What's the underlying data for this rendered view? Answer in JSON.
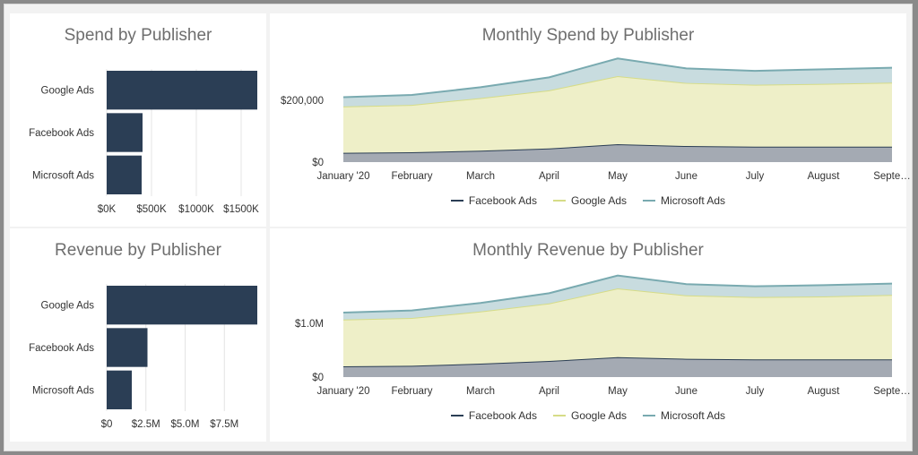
{
  "chart_data": [
    {
      "id": "spend_bar",
      "type": "bar",
      "orientation": "horizontal",
      "title": "Spend by Publisher",
      "categories": [
        "Google Ads",
        "Facebook Ads",
        "Microsoft Ads"
      ],
      "values": [
        1680000,
        400000,
        390000
      ],
      "xlim": [
        0,
        1680000
      ],
      "ticks": [
        0,
        500000,
        1000000,
        1500000
      ],
      "tick_labels": [
        "$0K",
        "$500K",
        "$1000K",
        "$1500K"
      ],
      "color": "#2b3e55",
      "grid": true
    },
    {
      "id": "spend_area",
      "type": "area",
      "stacked": true,
      "title": "Monthly Spend by Publisher",
      "x": [
        "January '20",
        "February",
        "March",
        "April",
        "May",
        "June",
        "July",
        "August",
        "Septe…"
      ],
      "series": [
        {
          "name": "Facebook Ads",
          "values": [
            30000,
            32000,
            37000,
            44000,
            58000,
            52000,
            50000,
            50000,
            50000
          ],
          "line_color": "#2b3e55",
          "fill": "#a4aab3"
        },
        {
          "name": "Google Ads",
          "values": [
            150000,
            153000,
            170000,
            188000,
            220000,
            204000,
            200000,
            203000,
            207000
          ],
          "line_color": "#d6dc87",
          "fill": "#eeefc8"
        },
        {
          "name": "Microsoft Ads",
          "values": [
            30000,
            32000,
            35000,
            42000,
            57000,
            47000,
            45000,
            47000,
            48000
          ],
          "line_color": "#79aab0",
          "fill": "#c8dcdf"
        }
      ],
      "ylim": [
        0,
        330000
      ],
      "yticks": [
        0,
        200000
      ],
      "ytick_labels": [
        "$0",
        "$200,000"
      ],
      "legend": "bottom"
    },
    {
      "id": "revenue_bar",
      "type": "bar",
      "orientation": "horizontal",
      "title": "Revenue by Publisher",
      "categories": [
        "Google Ads",
        "Facebook Ads",
        "Microsoft Ads"
      ],
      "values": [
        9600000,
        2600000,
        1600000
      ],
      "xlim": [
        0,
        9600000
      ],
      "ticks": [
        0,
        2500000,
        5000000,
        7500000
      ],
      "tick_labels": [
        "$0",
        "$2.5M",
        "$5.0M",
        "$7.5M"
      ],
      "color": "#2b3e55",
      "grid": true
    },
    {
      "id": "revenue_area",
      "type": "area",
      "stacked": true,
      "title": "Monthly Revenue by Publisher",
      "x": [
        "January '20",
        "February",
        "March",
        "April",
        "May",
        "June",
        "July",
        "August",
        "Septe…"
      ],
      "series": [
        {
          "name": "Facebook Ads",
          "values": [
            200000,
            210000,
            250000,
            300000,
            370000,
            340000,
            330000,
            330000,
            330000
          ],
          "line_color": "#2b3e55",
          "fill": "#a4aab3"
        },
        {
          "name": "Google Ads",
          "values": [
            870000,
            890000,
            970000,
            1070000,
            1280000,
            1180000,
            1160000,
            1170000,
            1200000
          ],
          "line_color": "#d6dc87",
          "fill": "#eeefc8"
        },
        {
          "name": "Microsoft Ads",
          "values": [
            130000,
            140000,
            160000,
            190000,
            240000,
            210000,
            200000,
            210000,
            210000
          ],
          "line_color": "#79aab0",
          "fill": "#c8dcdf"
        }
      ],
      "ylim": [
        0,
        1900000
      ],
      "yticks": [
        0,
        1000000
      ],
      "ytick_labels": [
        "$0",
        "$1.0M"
      ],
      "legend": "bottom"
    }
  ]
}
